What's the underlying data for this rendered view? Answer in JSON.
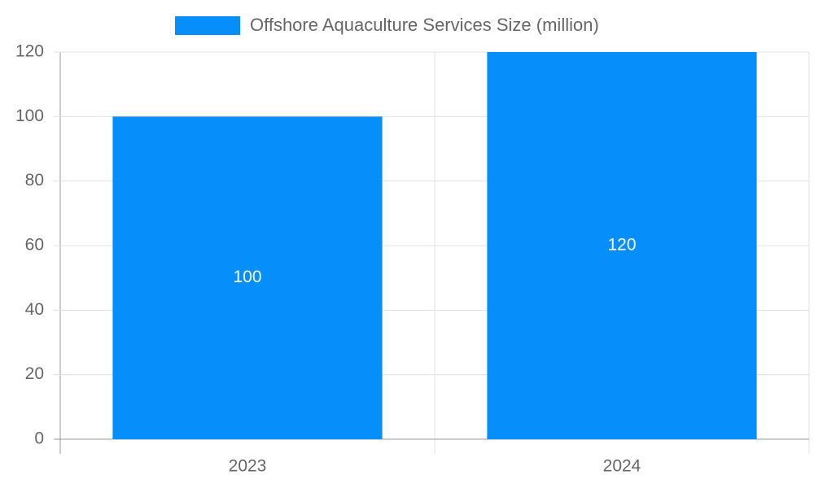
{
  "chart_data": {
    "type": "bar",
    "categories": [
      "2023",
      "2024"
    ],
    "series": [
      {
        "name": "Offshore Aquaculture Services Size (million)",
        "color": "#068ffb",
        "values": [
          100,
          120
        ]
      }
    ],
    "ylim": [
      0,
      120
    ],
    "yticks": [
      0,
      20,
      40,
      60,
      80,
      100,
      120
    ],
    "grid": true,
    "legend": "top"
  }
}
